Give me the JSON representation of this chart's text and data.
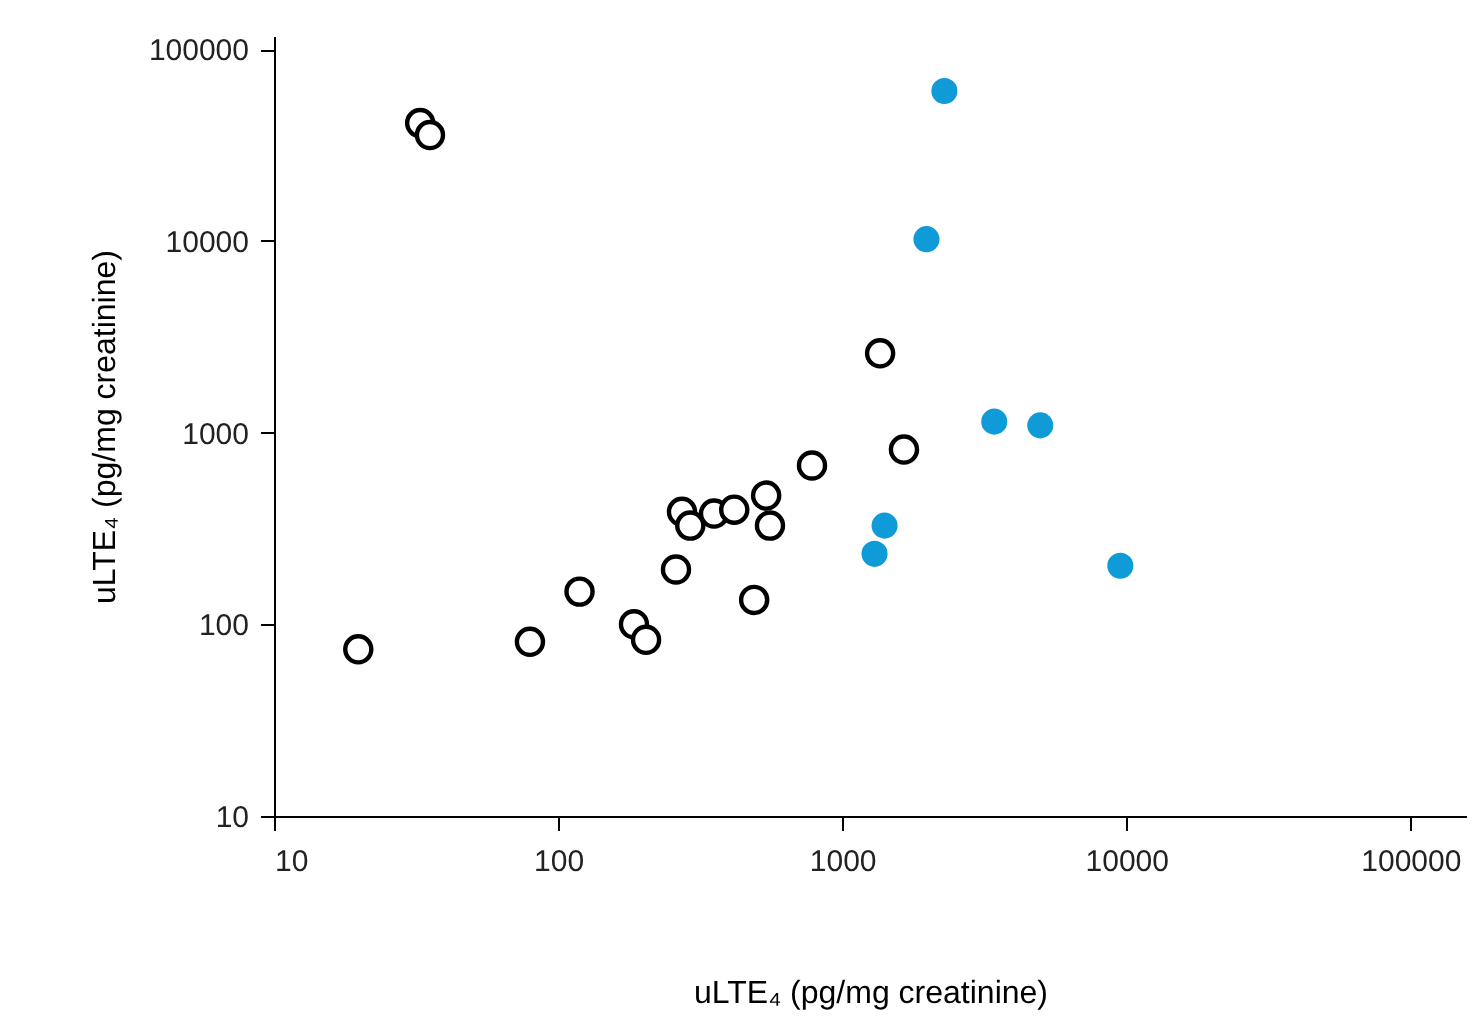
{
  "chart_data": {
    "type": "scatter",
    "xlabel": "uLTE₄ (pg/mg creatinine)",
    "ylabel": "uLTE₄ (pg/mg creatinine)",
    "log": "xy",
    "grid": false,
    "marker": "circle",
    "xlim": [
      10,
      157000
    ],
    "ylim": [
      10,
      117000
    ],
    "xticks": [
      10,
      100,
      1000,
      10000,
      100000
    ],
    "yticks": [
      10,
      100,
      1000,
      10000,
      100000
    ],
    "series": [
      {
        "color": "#000000",
        "x": [
          19.8,
          32.7,
          35.4,
          79.6,
          119,
          185,
          204,
          260,
          273,
          292,
          354,
          417,
          490,
          540,
          557,
          783,
          1360,
          1650
        ],
        "values": [
          74,
          41100,
          35600,
          81,
          148,
          100,
          83,
          193,
          386,
          327,
          378,
          396,
          134,
          469,
          327,
          673,
          2590,
          815
        ]
      },
      {
        "color": "#0f9ad8",
        "x": [
          2290,
          1980,
          3430,
          4980,
          9530,
          1410,
          1300
        ],
        "values": [
          60400,
          10200,
          1140,
          1090,
          202,
          327,
          233
        ]
      }
    ]
  }
}
